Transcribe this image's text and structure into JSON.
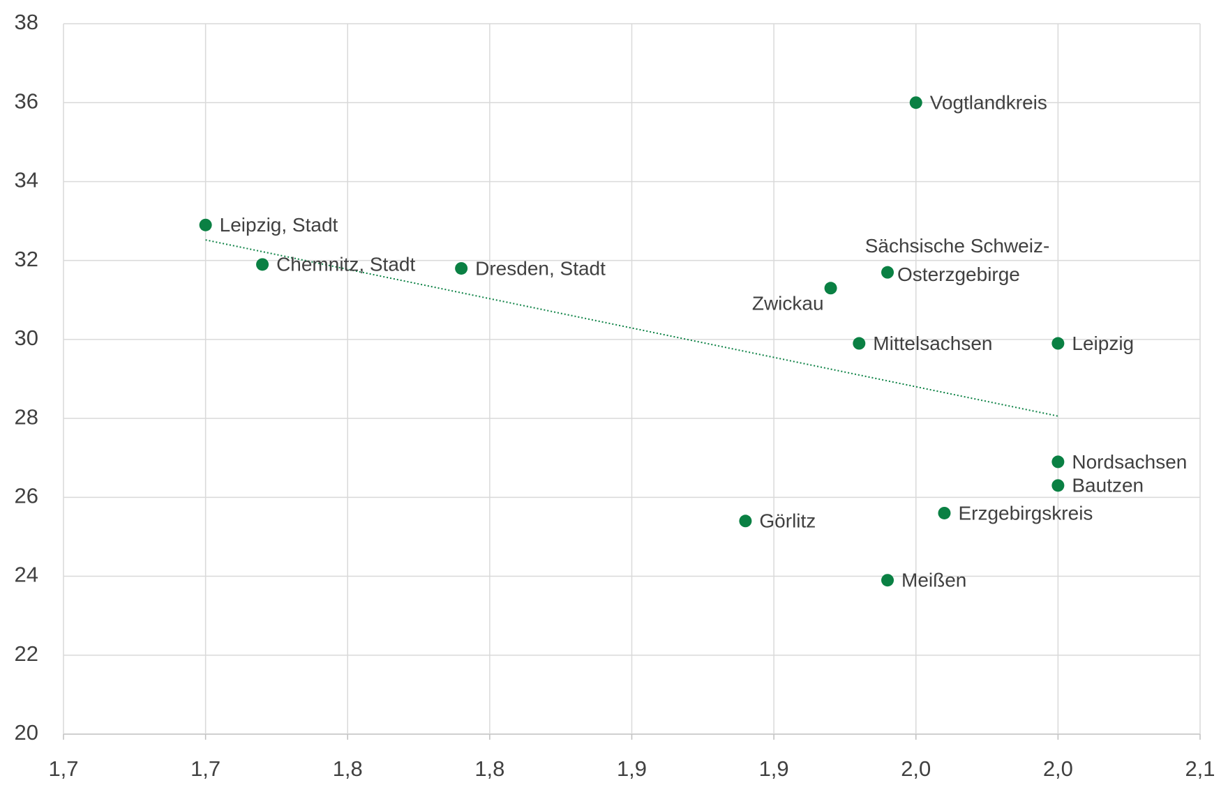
{
  "chart_data": {
    "type": "scatter",
    "x": [
      1.7,
      1.72,
      1.79,
      1.92,
      1.94,
      1.93,
      1.95,
      2.0,
      2.0,
      2.0,
      1.96,
      1.89,
      1.94
    ],
    "values": [
      32.9,
      31.9,
      31.8,
      31.3,
      31.7,
      29.9,
      36.0,
      29.9,
      26.9,
      26.3,
      25.6,
      25.4,
      23.9
    ],
    "labels": [
      "Leipzig, Stadt",
      "Chemnitz, Stadt",
      "Dresden, Stadt",
      "Zwickau",
      [
        "Sächsische Schweiz-",
        "Osterzgebirge"
      ],
      "Mittelsachsen",
      "Vogtlandkreis",
      "Leipzig",
      "Nordsachsen",
      "Bautzen",
      "Erzgebirgskreis",
      "Görlitz",
      "Meißen"
    ],
    "color": "#0a8043",
    "xlim": [
      1.65,
      2.05
    ],
    "xticks": [
      {
        "value": 1.65,
        "label": "1,7"
      },
      {
        "value": 1.7,
        "label": "1,7"
      },
      {
        "value": 1.75,
        "label": "1,8"
      },
      {
        "value": 1.8,
        "label": "1,8"
      },
      {
        "value": 1.85,
        "label": "1,9"
      },
      {
        "value": 1.9,
        "label": "1,9"
      },
      {
        "value": 1.95,
        "label": "2,0"
      },
      {
        "value": 2.0,
        "label": "2,0"
      },
      {
        "value": 2.05,
        "label": "2,1"
      }
    ],
    "ylim": [
      20,
      38
    ],
    "yticks": [
      20,
      22,
      24,
      26,
      28,
      30,
      32,
      34,
      36,
      38
    ],
    "grid": true,
    "trendline": true
  }
}
